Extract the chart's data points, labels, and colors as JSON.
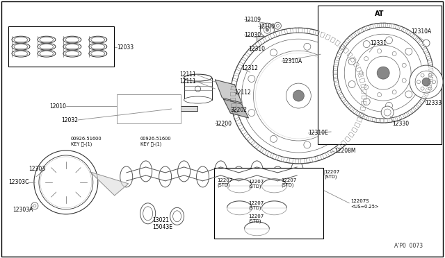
{
  "bg_color": "#ffffff",
  "border_color": "#000000",
  "line_color": "#555555",
  "key_label": "KEY キ-(1)",
  "us025_label": "<US=0.25>",
  "diagram_code": "A'P0  0073"
}
